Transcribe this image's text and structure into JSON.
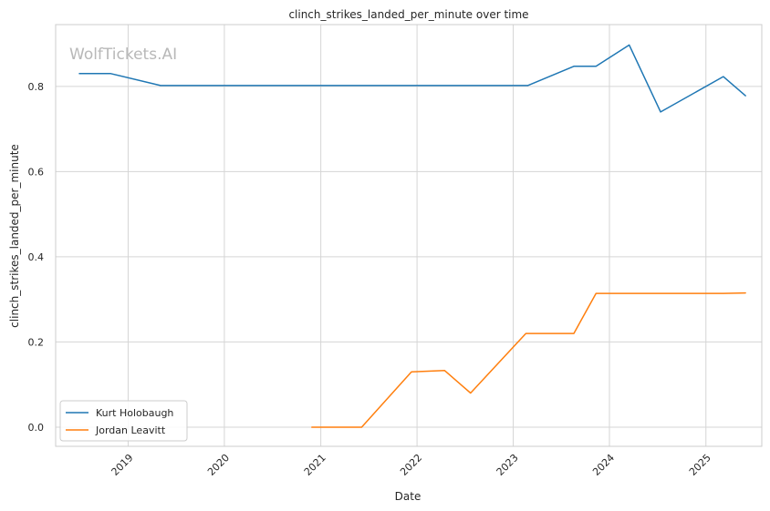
{
  "watermark": "WolfTickets.AI",
  "colors": {
    "Kurt Holobaugh": "#1f77b4",
    "Jordan Leavitt": "#ff7f0e",
    "grid": "#d5d5d5",
    "frame": "#cccccc"
  },
  "chart_data": {
    "type": "line",
    "title": "clinch_strikes_landed_per_minute over time",
    "xlabel": "Date",
    "ylabel": "clinch_strikes_landed_per_minute",
    "xlim": [
      "2018-04-01",
      "2025-08-01"
    ],
    "ylim": [
      -0.045,
      0.945
    ],
    "grid": true,
    "legend_position": "lower-left",
    "x_ticks": [
      {
        "label": "2019",
        "date": "2019-01-01"
      },
      {
        "label": "2020",
        "date": "2020-01-01"
      },
      {
        "label": "2021",
        "date": "2021-01-01"
      },
      {
        "label": "2022",
        "date": "2022-01-01"
      },
      {
        "label": "2023",
        "date": "2023-01-01"
      },
      {
        "label": "2024",
        "date": "2024-01-01"
      },
      {
        "label": "2025",
        "date": "2025-01-01"
      }
    ],
    "y_ticks": [
      {
        "label": "0.0",
        "value": 0.0
      },
      {
        "label": "0.2",
        "value": 0.2
      },
      {
        "label": "0.4",
        "value": 0.4
      },
      {
        "label": "0.6",
        "value": 0.6
      },
      {
        "label": "0.8",
        "value": 0.8
      }
    ],
    "series": [
      {
        "name": "Kurt Holobaugh",
        "points": [
          {
            "x": "2018-06-30",
            "y": 0.83
          },
          {
            "x": "2018-10-27",
            "y": 0.83
          },
          {
            "x": "2019-05-04",
            "y": 0.802
          },
          {
            "x": "2023-02-25",
            "y": 0.802
          },
          {
            "x": "2023-08-19",
            "y": 0.847
          },
          {
            "x": "2023-11-11",
            "y": 0.847
          },
          {
            "x": "2024-03-16",
            "y": 0.897
          },
          {
            "x": "2024-07-13",
            "y": 0.74
          },
          {
            "x": "2025-03-08",
            "y": 0.823
          },
          {
            "x": "2025-05-31",
            "y": 0.778
          }
        ]
      },
      {
        "name": "Jordan Leavitt",
        "points": [
          {
            "x": "2020-11-28",
            "y": 0.0
          },
          {
            "x": "2021-06-05",
            "y": 0.0
          },
          {
            "x": "2021-12-11",
            "y": 0.13
          },
          {
            "x": "2022-04-16",
            "y": 0.133
          },
          {
            "x": "2022-07-23",
            "y": 0.08
          },
          {
            "x": "2023-02-18",
            "y": 0.22
          },
          {
            "x": "2023-08-19",
            "y": 0.22
          },
          {
            "x": "2023-11-11",
            "y": 0.314
          },
          {
            "x": "2025-03-08",
            "y": 0.314
          },
          {
            "x": "2025-05-31",
            "y": 0.315
          }
        ]
      }
    ]
  }
}
